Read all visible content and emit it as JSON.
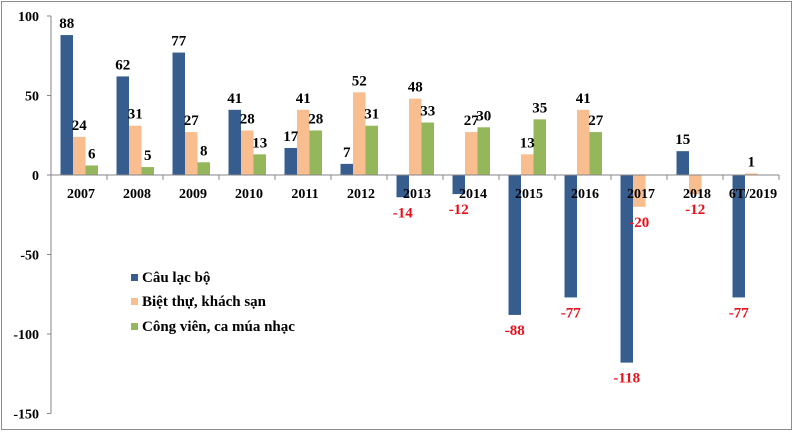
{
  "chart_data": {
    "type": "bar",
    "title": "",
    "xlabel": "",
    "ylabel": "",
    "ylim": [
      -150,
      100
    ],
    "yticks": [
      100,
      50,
      0,
      -50,
      -100,
      -150
    ],
    "grid": false,
    "legend_position": "center-left",
    "categories": [
      "2007",
      "2008",
      "2009",
      "2010",
      "2011",
      "2012",
      "2013",
      "2014",
      "2015",
      "2016",
      "2017",
      "2018",
      "6T/2019"
    ],
    "series": [
      {
        "name": "Câu lạc bộ",
        "color": "#375D8E",
        "values": [
          88,
          62,
          77,
          41,
          17,
          7,
          -14,
          -12,
          -88,
          -77,
          -118,
          15,
          -77
        ]
      },
      {
        "name": "Biệt thự, khách sạn",
        "color": "#F9BE8F",
        "values": [
          24,
          31,
          27,
          28,
          41,
          52,
          48,
          27,
          13,
          41,
          -20,
          -12,
          1
        ]
      },
      {
        "name": "Công viên, ca múa nhạc",
        "color": "#95B75B",
        "values": [
          6,
          5,
          8,
          13,
          28,
          31,
          33,
          30,
          35,
          27,
          null,
          null,
          null
        ]
      }
    ],
    "label_colors": {
      "positive": "#000000",
      "negative": "#E8101A"
    }
  }
}
